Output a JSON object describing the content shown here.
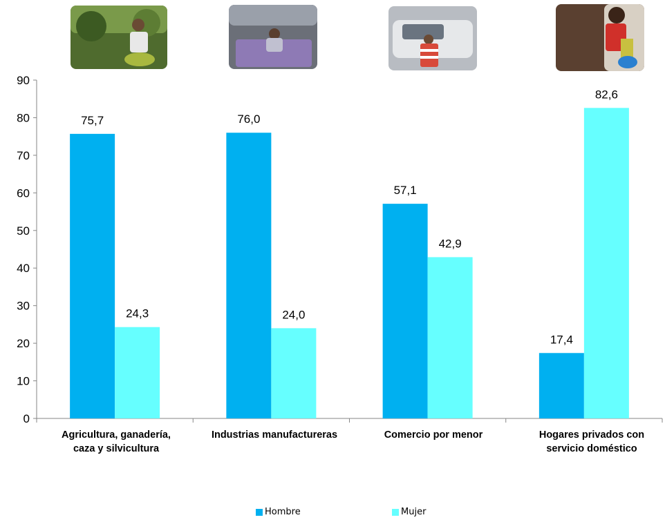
{
  "chart_data": {
    "type": "bar",
    "categories": [
      "Agricultura, ganadería, caza y silvicultura",
      "Industrias manufactureras",
      "Comercio por menor",
      "Hogares privados con servicio doméstico"
    ],
    "series": [
      {
        "name": "Hombre",
        "values": [
          75.7,
          76.0,
          57.1,
          17.4
        ],
        "labels": [
          "75,7",
          "76,0",
          "57,1",
          "17,4"
        ],
        "color": "#00B0F0"
      },
      {
        "name": "Mujer",
        "values": [
          24.3,
          24.0,
          42.9,
          82.6
        ],
        "labels": [
          "24,3",
          "24,0",
          "42,9",
          "82,6"
        ],
        "color": "#66FFFF"
      }
    ],
    "ylim": [
      0,
      90
    ],
    "yticks": [
      0,
      10,
      20,
      30,
      40,
      50,
      60,
      70,
      80,
      90
    ],
    "grid": false,
    "legend": "bottom",
    "title": "",
    "xlabel": "",
    "ylabel": ""
  },
  "categories_display": [
    {
      "line1": "Agricultura, ganadería,",
      "line2": "caza y silvicultura"
    },
    {
      "line1": "Industrias manufactureras",
      "line2": ""
    },
    {
      "line1": "Comercio por menor",
      "line2": ""
    },
    {
      "line1": "Hogares privados con",
      "line2": "servicio doméstico"
    }
  ],
  "legend": {
    "hombre": "Hombre",
    "mujer": "Mujer"
  },
  "photos": [
    {
      "icon": "farm-worker-photo-icon"
    },
    {
      "icon": "factory-worker-photo-icon"
    },
    {
      "icon": "street-vendor-child-photo-icon"
    },
    {
      "icon": "domestic-worker-child-photo-icon"
    }
  ]
}
